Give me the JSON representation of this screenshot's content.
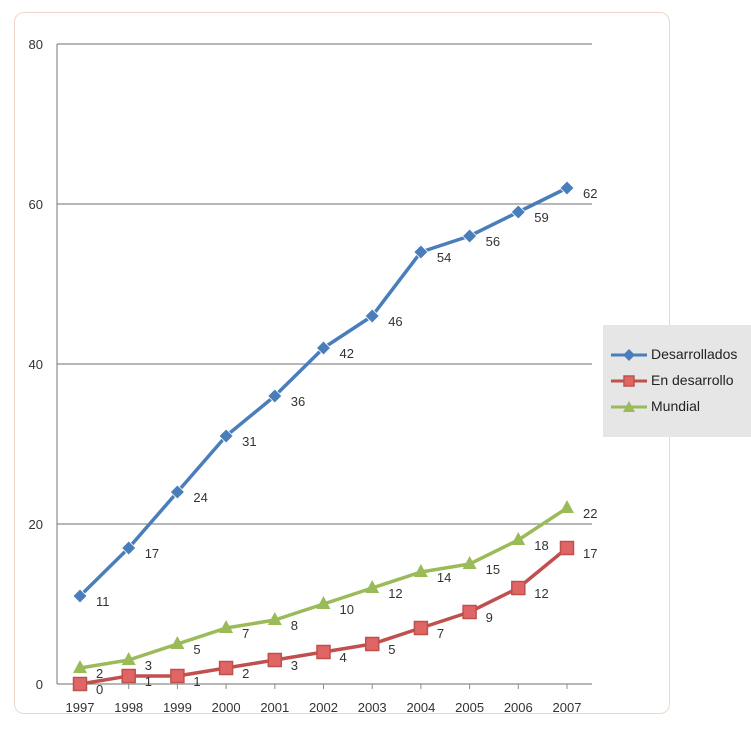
{
  "chart_data": {
    "type": "line",
    "x": [
      "1997",
      "1998",
      "1999",
      "2000",
      "2001",
      "2002",
      "2003",
      "2004",
      "2005",
      "2006",
      "2007"
    ],
    "ylim": [
      0,
      80
    ],
    "yticks": [
      "0",
      "20",
      "40",
      "60",
      "80"
    ],
    "grid": true,
    "legend_position": "right",
    "series": [
      {
        "name": "Desarrollados",
        "color": "#4a7ebb",
        "marker": "diamond",
        "values": [
          11,
          17,
          24,
          31,
          36,
          42,
          46,
          54,
          56,
          59,
          62
        ]
      },
      {
        "name": "En desarrollo",
        "color": "#c0504d",
        "marker": "square",
        "values": [
          0,
          1,
          1,
          2,
          3,
          4,
          5,
          7,
          9,
          12,
          17
        ]
      },
      {
        "name": "Mundial",
        "color": "#9bbb59",
        "marker": "triangle",
        "values": [
          2,
          3,
          5,
          7,
          8,
          10,
          12,
          14,
          15,
          18,
          22
        ]
      }
    ]
  }
}
